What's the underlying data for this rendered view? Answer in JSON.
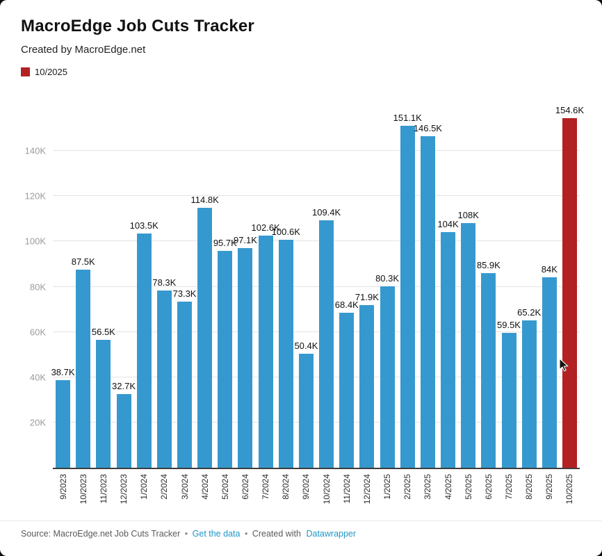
{
  "header": {
    "title": "MacroEdge Job Cuts Tracker",
    "subtitle": "Created by MacroEdge.net"
  },
  "legend": {
    "label": "10/2025",
    "color": "#b22222"
  },
  "chart_data": {
    "type": "bar",
    "title": "MacroEdge Job Cuts Tracker",
    "subtitle": "Created by MacroEdge.net",
    "categories": [
      "9/2023",
      "10/2023",
      "11/2023",
      "12/2023",
      "1/2024",
      "2/2024",
      "3/2024",
      "4/2024",
      "5/2024",
      "6/2024",
      "7/2024",
      "8/2024",
      "9/2024",
      "10/2024",
      "11/2024",
      "12/2024",
      "1/2025",
      "2/2025",
      "3/2025",
      "4/2025",
      "5/2025",
      "6/2025",
      "7/2025",
      "8/2025",
      "9/2025",
      "10/2025"
    ],
    "values": [
      38700,
      87500,
      56500,
      32700,
      103500,
      78300,
      73300,
      114800,
      95700,
      97100,
      102600,
      100600,
      50400,
      109400,
      68400,
      71900,
      80300,
      151100,
      146500,
      104000,
      108000,
      85900,
      59500,
      65200,
      84000,
      154600
    ],
    "labels": [
      "38.7K",
      "87.5K",
      "56.5K",
      "32.7K",
      "103.5K",
      "78.3K",
      "73.3K",
      "114.8K",
      "95.7K",
      "97.1K",
      "102.6K",
      "100.6K",
      "50.4K",
      "109.4K",
      "68.4K",
      "71.9K",
      "80.3K",
      "151.1K",
      "146.5K",
      "104K",
      "108K",
      "85.9K",
      "59.5K",
      "65.2K",
      "84K",
      "154.6K"
    ],
    "bar_color": "#3599cf",
    "highlight_color": "#b22222",
    "highlight_index": 25,
    "highlight_category": "10/2025",
    "ylim": [
      0,
      156000
    ],
    "yticks": [
      "20K",
      "40K",
      "60K",
      "80K",
      "100K",
      "120K",
      "140K"
    ],
    "xlabel": "",
    "ylabel": "",
    "grid": true,
    "legend_position": "top-left"
  },
  "footer": {
    "source_prefix": "Source: MacroEdge.net Job Cuts Tracker",
    "separator": "•",
    "link1": "Get the data",
    "created_with": "Created with",
    "link2": "Datawrapper",
    "link_color": "#1e96c9"
  }
}
